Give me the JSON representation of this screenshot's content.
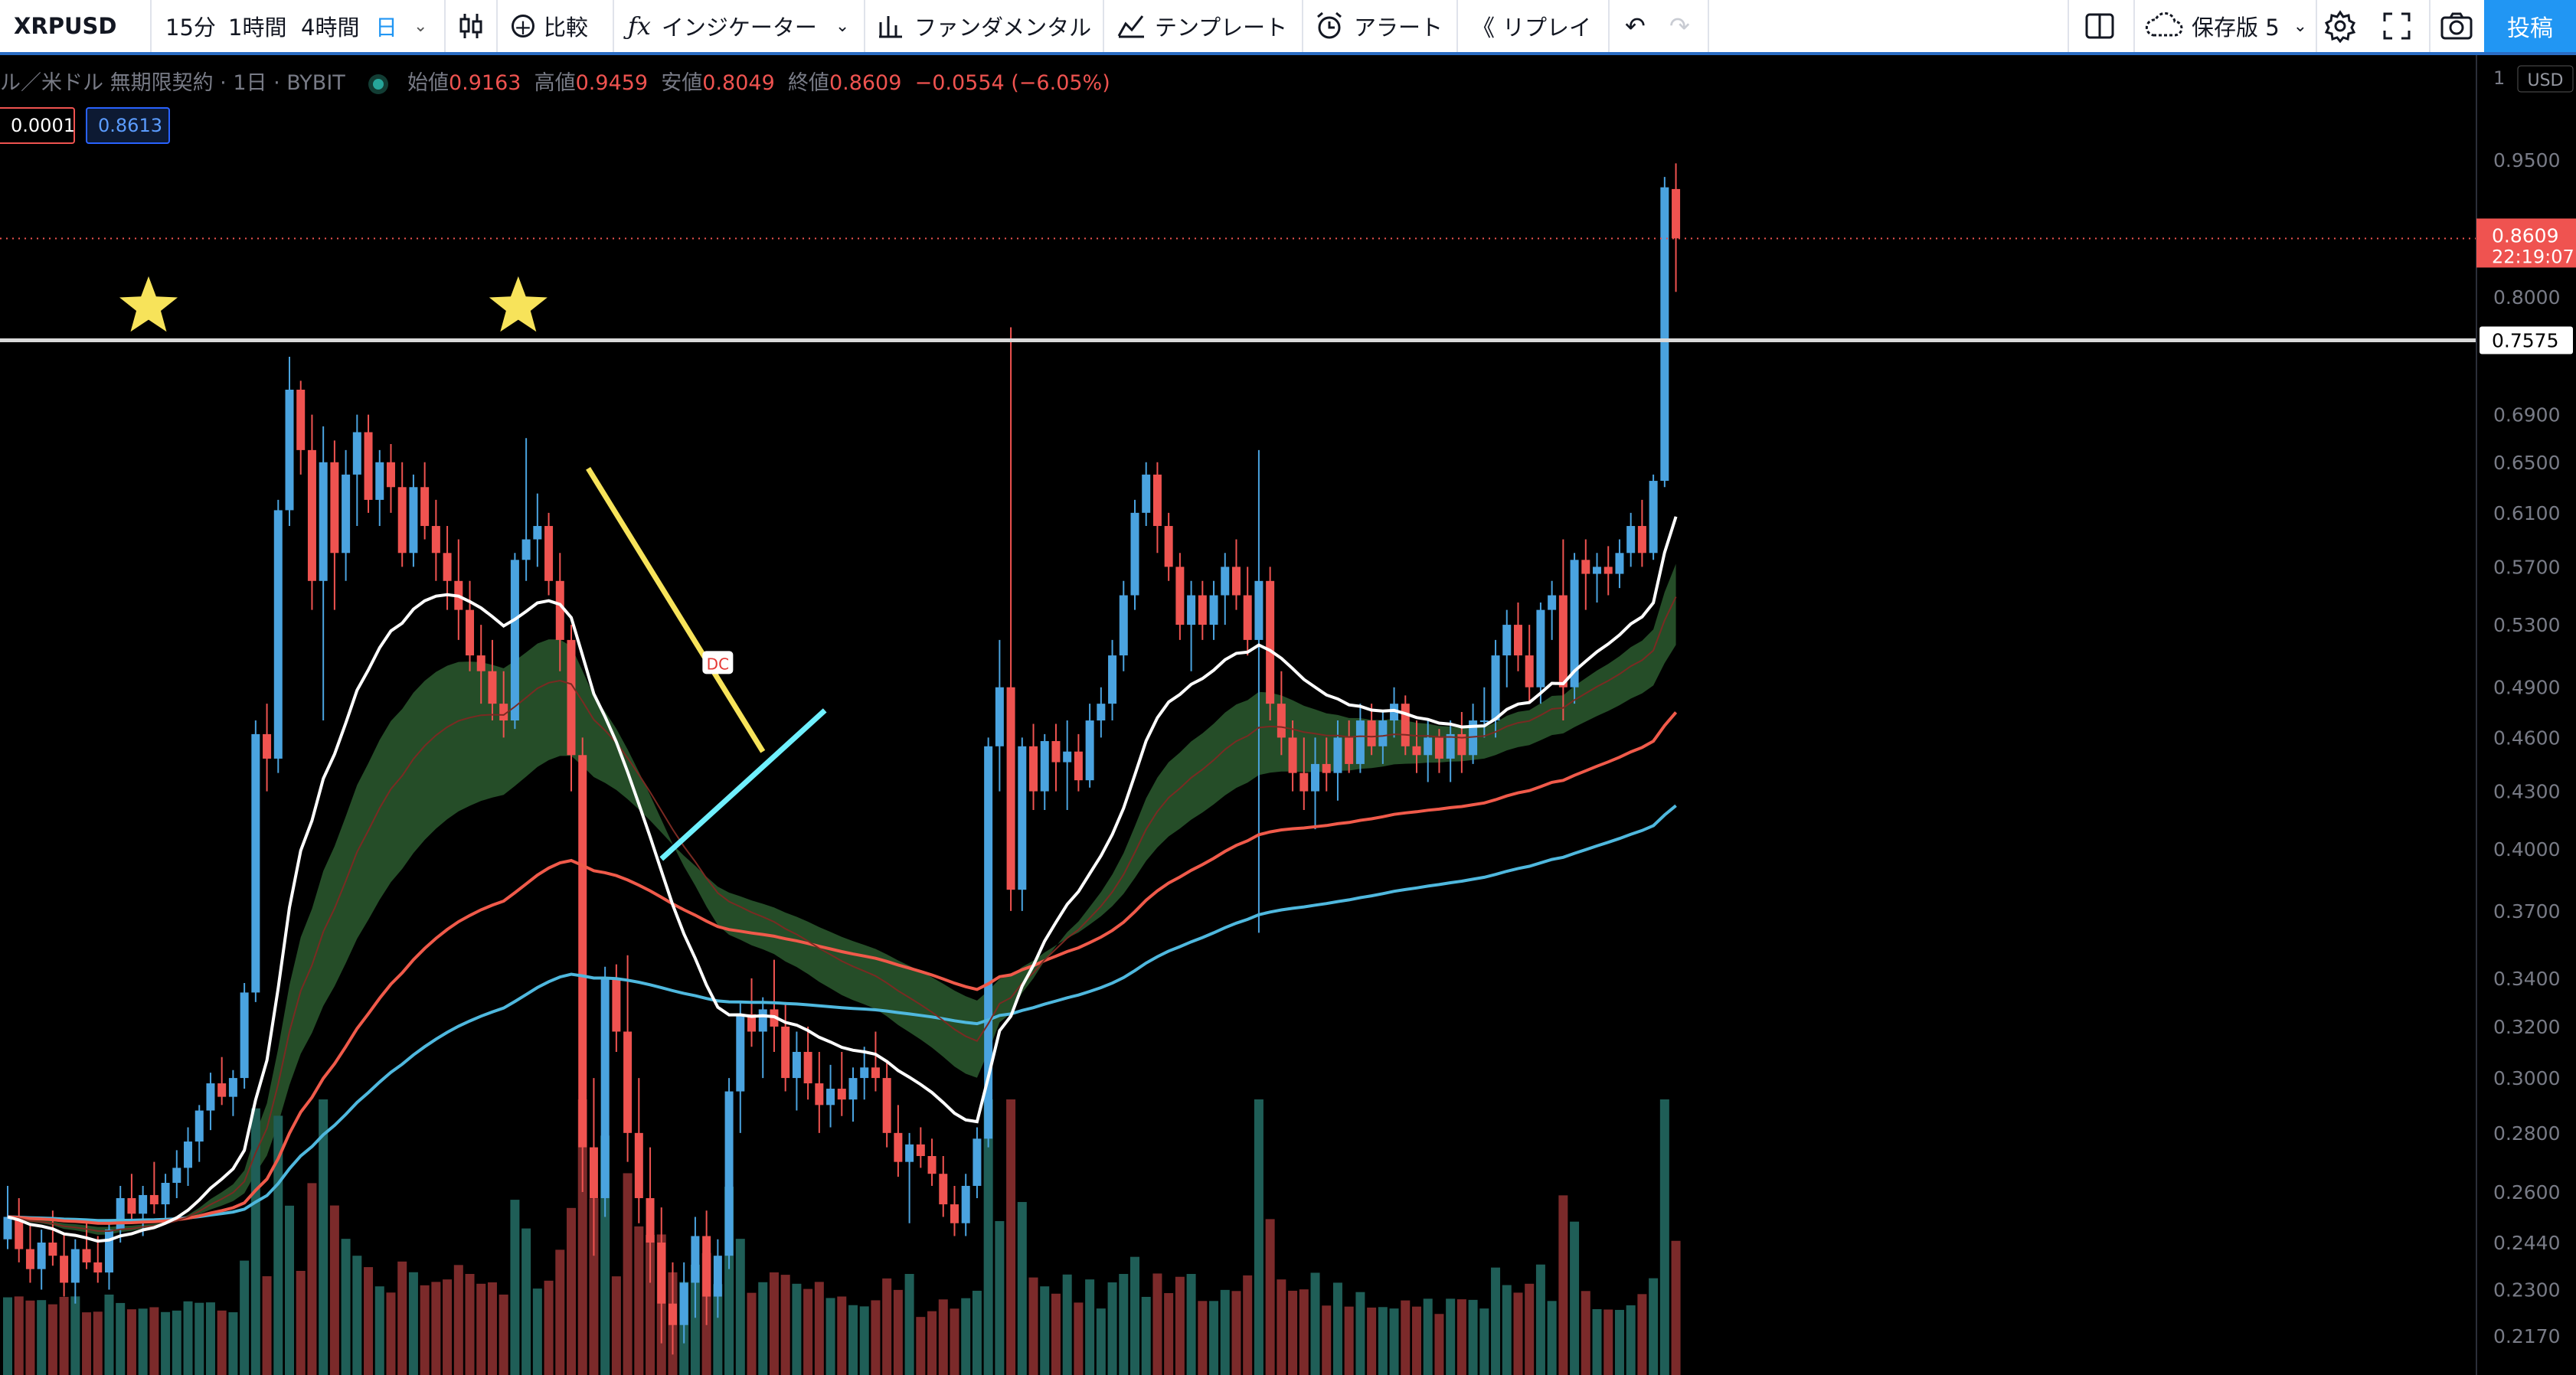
{
  "toolbar": {
    "symbol": "XRPUSD",
    "intervals": [
      "15分",
      "1時間",
      "4時間",
      "日"
    ],
    "compare": "比較",
    "indicators": "インジケーター",
    "fundamental": "ファンダメンタル",
    "template": "テンプレート",
    "alert": "アラート",
    "replay": "リプレイ",
    "save": "保存版 5",
    "post": "投稿"
  },
  "legend": {
    "title": "ル／米ドル 無期限契約 · 1日 · BYBIT",
    "open_label": "始値",
    "open": "0.9163",
    "high_label": "高値",
    "high": "0.9459",
    "low_label": "安値",
    "low": "0.8049",
    "close_label": "終値",
    "close": "0.8609",
    "change": "−0.0554 (−6.05%)",
    "spread": "0.0001",
    "buy": "0.8613"
  },
  "price_axis": {
    "currency": "USD",
    "scale_flag": "1",
    "ticks": [
      "0.9500",
      "0.8000",
      "0.6900",
      "0.6500",
      "0.6100",
      "0.5700",
      "0.5300",
      "0.4900",
      "0.4600",
      "0.4300",
      "0.4000",
      "0.3700",
      "0.3400",
      "0.3200",
      "0.3000",
      "0.2800",
      "0.2600",
      "0.2440",
      "0.2300",
      "0.2170"
    ],
    "last_price": "0.8609",
    "countdown": "22:19:07",
    "hline_price": "0.7575"
  },
  "annotations": {
    "dc_label": "DC"
  },
  "colors": {
    "up": "#4aa3df",
    "down": "#ef5350",
    "ema_white": "#ffffff",
    "ema_red": "#f05a4a",
    "ema_blue": "#4fb8de",
    "cloud": "#2b5a2f",
    "trend_yellow": "#f7e35a",
    "trend_cyan": "#6ff0ff",
    "star": "#f7e35a"
  },
  "chart_data": {
    "type": "candlestick",
    "symbol": "XRPUSD",
    "timeframe": "1D",
    "y_scale": "log",
    "ylim": [
      0.215,
      1.0
    ],
    "ohlc": [
      [
        0.245,
        0.262,
        0.242,
        0.252
      ],
      [
        0.252,
        0.258,
        0.238,
        0.242
      ],
      [
        0.242,
        0.25,
        0.232,
        0.236
      ],
      [
        0.236,
        0.248,
        0.23,
        0.244
      ],
      [
        0.244,
        0.254,
        0.237,
        0.24
      ],
      [
        0.24,
        0.247,
        0.228,
        0.232
      ],
      [
        0.232,
        0.245,
        0.226,
        0.242
      ],
      [
        0.242,
        0.25,
        0.236,
        0.238
      ],
      [
        0.238,
        0.246,
        0.232,
        0.235
      ],
      [
        0.235,
        0.25,
        0.23,
        0.248
      ],
      [
        0.248,
        0.262,
        0.244,
        0.258
      ],
      [
        0.258,
        0.266,
        0.25,
        0.253
      ],
      [
        0.253,
        0.262,
        0.246,
        0.259
      ],
      [
        0.259,
        0.27,
        0.253,
        0.256
      ],
      [
        0.256,
        0.266,
        0.251,
        0.263
      ],
      [
        0.263,
        0.274,
        0.258,
        0.268
      ],
      [
        0.268,
        0.282,
        0.262,
        0.277
      ],
      [
        0.277,
        0.29,
        0.27,
        0.288
      ],
      [
        0.288,
        0.302,
        0.281,
        0.298
      ],
      [
        0.298,
        0.308,
        0.29,
        0.293
      ],
      [
        0.293,
        0.303,
        0.286,
        0.3
      ],
      [
        0.3,
        0.338,
        0.296,
        0.334
      ],
      [
        0.334,
        0.47,
        0.33,
        0.462
      ],
      [
        0.462,
        0.48,
        0.43,
        0.448
      ],
      [
        0.448,
        0.62,
        0.44,
        0.612
      ],
      [
        0.612,
        0.742,
        0.6,
        0.712
      ],
      [
        0.712,
        0.72,
        0.64,
        0.66
      ],
      [
        0.66,
        0.69,
        0.54,
        0.56
      ],
      [
        0.56,
        0.68,
        0.47,
        0.65
      ],
      [
        0.65,
        0.668,
        0.54,
        0.58
      ],
      [
        0.58,
        0.66,
        0.56,
        0.64
      ],
      [
        0.64,
        0.69,
        0.6,
        0.675
      ],
      [
        0.675,
        0.69,
        0.61,
        0.62
      ],
      [
        0.62,
        0.66,
        0.6,
        0.65
      ],
      [
        0.65,
        0.665,
        0.61,
        0.63
      ],
      [
        0.63,
        0.65,
        0.57,
        0.58
      ],
      [
        0.58,
        0.64,
        0.57,
        0.63
      ],
      [
        0.63,
        0.65,
        0.59,
        0.6
      ],
      [
        0.6,
        0.62,
        0.56,
        0.58
      ],
      [
        0.58,
        0.6,
        0.54,
        0.56
      ],
      [
        0.56,
        0.59,
        0.52,
        0.54
      ],
      [
        0.54,
        0.56,
        0.5,
        0.51
      ],
      [
        0.51,
        0.53,
        0.48,
        0.5
      ],
      [
        0.5,
        0.52,
        0.47,
        0.48
      ],
      [
        0.48,
        0.5,
        0.46,
        0.47
      ],
      [
        0.47,
        0.58,
        0.465,
        0.575
      ],
      [
        0.575,
        0.67,
        0.56,
        0.59
      ],
      [
        0.59,
        0.625,
        0.57,
        0.6
      ],
      [
        0.6,
        0.61,
        0.55,
        0.56
      ],
      [
        0.56,
        0.58,
        0.5,
        0.52
      ],
      [
        0.52,
        0.53,
        0.43,
        0.45
      ],
      [
        0.45,
        0.46,
        0.26,
        0.275
      ],
      [
        0.275,
        0.3,
        0.24,
        0.258
      ],
      [
        0.258,
        0.345,
        0.252,
        0.34
      ],
      [
        0.34,
        0.346,
        0.31,
        0.318
      ],
      [
        0.318,
        0.35,
        0.27,
        0.28
      ],
      [
        0.28,
        0.3,
        0.25,
        0.258
      ],
      [
        0.258,
        0.275,
        0.232,
        0.244
      ],
      [
        0.244,
        0.255,
        0.215,
        0.226
      ],
      [
        0.226,
        0.238,
        0.212,
        0.22
      ],
      [
        0.22,
        0.238,
        0.215,
        0.232
      ],
      [
        0.232,
        0.252,
        0.222,
        0.246
      ],
      [
        0.246,
        0.254,
        0.22,
        0.228
      ],
      [
        0.228,
        0.245,
        0.222,
        0.24
      ],
      [
        0.24,
        0.3,
        0.236,
        0.295
      ],
      [
        0.295,
        0.33,
        0.28,
        0.325
      ],
      [
        0.325,
        0.34,
        0.312,
        0.318
      ],
      [
        0.318,
        0.332,
        0.3,
        0.327
      ],
      [
        0.327,
        0.348,
        0.31,
        0.32
      ],
      [
        0.32,
        0.33,
        0.295,
        0.3
      ],
      [
        0.3,
        0.318,
        0.288,
        0.31
      ],
      [
        0.31,
        0.32,
        0.292,
        0.298
      ],
      [
        0.298,
        0.31,
        0.28,
        0.29
      ],
      [
        0.29,
        0.305,
        0.282,
        0.296
      ],
      [
        0.296,
        0.31,
        0.286,
        0.292
      ],
      [
        0.292,
        0.304,
        0.284,
        0.3
      ],
      [
        0.3,
        0.312,
        0.292,
        0.304
      ],
      [
        0.304,
        0.318,
        0.295,
        0.3
      ],
      [
        0.3,
        0.306,
        0.275,
        0.28
      ],
      [
        0.28,
        0.29,
        0.265,
        0.27
      ],
      [
        0.27,
        0.28,
        0.25,
        0.276
      ],
      [
        0.276,
        0.282,
        0.268,
        0.272
      ],
      [
        0.272,
        0.278,
        0.262,
        0.266
      ],
      [
        0.266,
        0.272,
        0.252,
        0.256
      ],
      [
        0.256,
        0.262,
        0.246,
        0.25
      ],
      [
        0.25,
        0.266,
        0.246,
        0.262
      ],
      [
        0.262,
        0.282,
        0.258,
        0.278
      ],
      [
        0.278,
        0.46,
        0.275,
        0.455
      ],
      [
        0.455,
        0.52,
        0.43,
        0.49
      ],
      [
        0.49,
        0.77,
        0.37,
        0.38
      ],
      [
        0.38,
        0.46,
        0.37,
        0.455
      ],
      [
        0.455,
        0.468,
        0.42,
        0.43
      ],
      [
        0.43,
        0.462,
        0.42,
        0.458
      ],
      [
        0.458,
        0.468,
        0.43,
        0.446
      ],
      [
        0.446,
        0.47,
        0.42,
        0.452
      ],
      [
        0.452,
        0.462,
        0.43,
        0.436
      ],
      [
        0.436,
        0.48,
        0.432,
        0.47
      ],
      [
        0.47,
        0.49,
        0.46,
        0.48
      ],
      [
        0.48,
        0.52,
        0.47,
        0.51
      ],
      [
        0.51,
        0.56,
        0.5,
        0.55
      ],
      [
        0.55,
        0.62,
        0.54,
        0.61
      ],
      [
        0.61,
        0.65,
        0.6,
        0.64
      ],
      [
        0.64,
        0.65,
        0.58,
        0.6
      ],
      [
        0.6,
        0.61,
        0.56,
        0.57
      ],
      [
        0.57,
        0.58,
        0.52,
        0.53
      ],
      [
        0.53,
        0.56,
        0.5,
        0.55
      ],
      [
        0.55,
        0.56,
        0.52,
        0.53
      ],
      [
        0.53,
        0.56,
        0.52,
        0.55
      ],
      [
        0.55,
        0.58,
        0.53,
        0.57
      ],
      [
        0.57,
        0.59,
        0.54,
        0.55
      ],
      [
        0.55,
        0.57,
        0.51,
        0.52
      ],
      [
        0.52,
        0.66,
        0.36,
        0.56
      ],
      [
        0.56,
        0.57,
        0.47,
        0.48
      ],
      [
        0.48,
        0.5,
        0.45,
        0.46
      ],
      [
        0.46,
        0.47,
        0.43,
        0.44
      ],
      [
        0.44,
        0.46,
        0.42,
        0.43
      ],
      [
        0.43,
        0.46,
        0.41,
        0.445
      ],
      [
        0.445,
        0.46,
        0.43,
        0.44
      ],
      [
        0.44,
        0.47,
        0.425,
        0.46
      ],
      [
        0.46,
        0.47,
        0.44,
        0.445
      ],
      [
        0.445,
        0.48,
        0.44,
        0.47
      ],
      [
        0.47,
        0.48,
        0.45,
        0.455
      ],
      [
        0.455,
        0.475,
        0.445,
        0.47
      ],
      [
        0.47,
        0.49,
        0.46,
        0.48
      ],
      [
        0.48,
        0.485,
        0.45,
        0.455
      ],
      [
        0.455,
        0.47,
        0.44,
        0.45
      ],
      [
        0.45,
        0.47,
        0.435,
        0.46
      ],
      [
        0.46,
        0.465,
        0.44,
        0.448
      ],
      [
        0.448,
        0.47,
        0.435,
        0.462
      ],
      [
        0.462,
        0.475,
        0.44,
        0.45
      ],
      [
        0.45,
        0.48,
        0.445,
        0.47
      ],
      [
        0.47,
        0.49,
        0.46,
        0.47
      ],
      [
        0.47,
        0.52,
        0.46,
        0.51
      ],
      [
        0.51,
        0.54,
        0.49,
        0.53
      ],
      [
        0.53,
        0.545,
        0.5,
        0.51
      ],
      [
        0.51,
        0.53,
        0.48,
        0.49
      ],
      [
        0.49,
        0.545,
        0.48,
        0.54
      ],
      [
        0.54,
        0.56,
        0.52,
        0.55
      ],
      [
        0.55,
        0.59,
        0.47,
        0.49
      ],
      [
        0.49,
        0.58,
        0.48,
        0.575
      ],
      [
        0.575,
        0.59,
        0.54,
        0.565
      ],
      [
        0.565,
        0.58,
        0.545,
        0.57
      ],
      [
        0.57,
        0.585,
        0.55,
        0.565
      ],
      [
        0.565,
        0.59,
        0.555,
        0.58
      ],
      [
        0.58,
        0.61,
        0.57,
        0.6
      ],
      [
        0.6,
        0.62,
        0.57,
        0.58
      ],
      [
        0.58,
        0.64,
        0.575,
        0.635
      ],
      [
        0.635,
        0.93,
        0.63,
        0.918
      ],
      [
        0.916,
        0.946,
        0.805,
        0.861
      ]
    ],
    "volume_scale": "relative (0–1)"
  }
}
